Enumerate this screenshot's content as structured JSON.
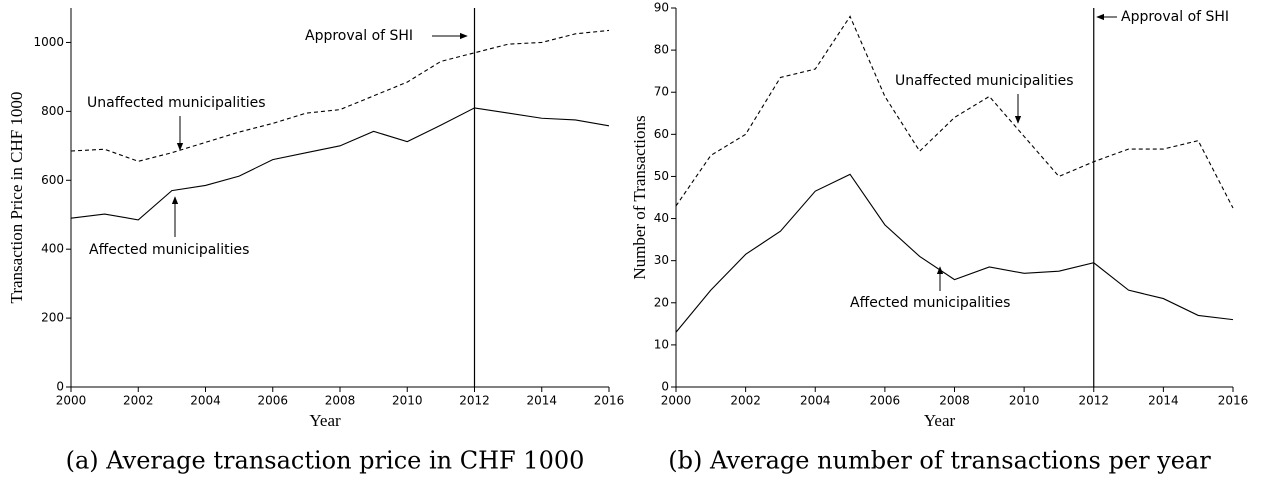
{
  "chart_data": [
    {
      "type": "line",
      "caption": "(a) Average transaction price in CHF 1000",
      "xlabel": "Year",
      "ylabel": "Transaction Price in CHF 1000",
      "x": [
        2000,
        2001,
        2002,
        2003,
        2004,
        2005,
        2006,
        2007,
        2008,
        2009,
        2010,
        2011,
        2012,
        2013,
        2014,
        2015,
        2016
      ],
      "xlim": [
        2000,
        2016
      ],
      "xticks": [
        2000,
        2002,
        2004,
        2006,
        2008,
        2010,
        2012,
        2014,
        2016
      ],
      "ylim": [
        0,
        1100
      ],
      "yticks": [
        0,
        200,
        400,
        600,
        800,
        1000
      ],
      "vline": 2012,
      "series": [
        {
          "name": "Unaffected municipalities",
          "color": "#000000",
          "style": "dashed",
          "values": [
            685,
            690,
            655,
            680,
            710,
            740,
            765,
            795,
            805,
            845,
            885,
            945,
            970,
            995,
            1000,
            1025,
            1035
          ]
        },
        {
          "name": "Affected municipalities",
          "color": "#000000",
          "style": "solid",
          "values": [
            490,
            502,
            485,
            570,
            585,
            612,
            660,
            680,
            700,
            742,
            712,
            760,
            810,
            795,
            780,
            775,
            758
          ]
        }
      ],
      "annotations": [
        "Approval of SHI",
        "Unaffected municipalities",
        "Affected municipalities"
      ]
    },
    {
      "type": "line",
      "caption": "(b) Average number of transactions per year",
      "xlabel": "Year",
      "ylabel": "Number of Transactions",
      "x": [
        2000,
        2001,
        2002,
        2003,
        2004,
        2005,
        2006,
        2007,
        2008,
        2009,
        2010,
        2011,
        2012,
        2013,
        2014,
        2015,
        2016
      ],
      "xlim": [
        2000,
        2016
      ],
      "xticks": [
        2000,
        2002,
        2004,
        2006,
        2008,
        2010,
        2012,
        2014,
        2016
      ],
      "ylim": [
        0,
        90
      ],
      "yticks": [
        0,
        10,
        20,
        30,
        40,
        50,
        60,
        70,
        80,
        90
      ],
      "vline": 2012,
      "series": [
        {
          "name": "Unaffected municipalities",
          "color": "#000000",
          "style": "dashed",
          "values": [
            43,
            55,
            60,
            73.5,
            75.5,
            88,
            69,
            56,
            64,
            69,
            59.5,
            50,
            53.5,
            56.5,
            56.5,
            58.5,
            42.5
          ]
        },
        {
          "name": "Affected municipalities",
          "color": "#000000",
          "style": "solid",
          "values": [
            13,
            23,
            31.5,
            37,
            46.5,
            50.5,
            38.5,
            31,
            25.5,
            28.5,
            27,
            27.5,
            29.5,
            23,
            21,
            17,
            16
          ]
        }
      ],
      "annotations": [
        "Approval of SHI",
        "Unaffected municipalities",
        "Affected municipalities"
      ]
    }
  ]
}
